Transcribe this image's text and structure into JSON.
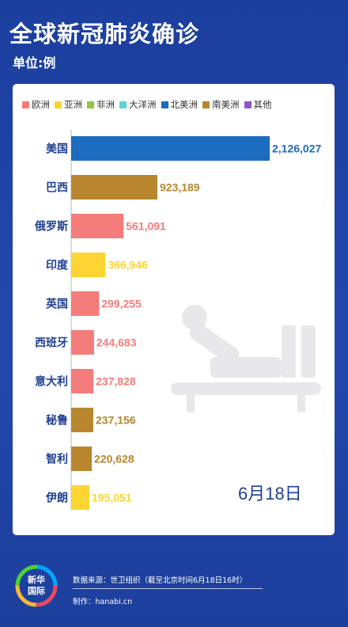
{
  "header": {
    "title": "全球新冠肺炎确诊",
    "unit": "单位:例"
  },
  "legend": [
    {
      "label": "欧洲",
      "color": "#f47c7a"
    },
    {
      "label": "亚洲",
      "color": "#fcd532"
    },
    {
      "label": "非洲",
      "color": "#8dc63f"
    },
    {
      "label": "大洋洲",
      "color": "#5fd4d6"
    },
    {
      "label": "北美洲",
      "color": "#1c6cbf"
    },
    {
      "label": "南美洲",
      "color": "#b8862e"
    },
    {
      "label": "其他",
      "color": "#8a56c7"
    }
  ],
  "date": "6月18日",
  "chart_data": {
    "type": "bar",
    "orientation": "horizontal",
    "categories": [
      "美国",
      "巴西",
      "俄罗斯",
      "印度",
      "英国",
      "西班牙",
      "意大利",
      "秘鲁",
      "智利",
      "伊朗"
    ],
    "values": [
      2126027,
      923189,
      561091,
      366946,
      299255,
      244683,
      237828,
      237156,
      220628,
      195051
    ],
    "labels": [
      "2,126,027",
      "923,189",
      "561,091",
      "366,946",
      "299,255",
      "244,683",
      "237,828",
      "237,156",
      "220,628",
      "195,051"
    ],
    "continents": [
      "北美洲",
      "南美洲",
      "欧洲",
      "亚洲",
      "欧洲",
      "欧洲",
      "欧洲",
      "南美洲",
      "南美洲",
      "亚洲"
    ],
    "xlim": [
      0,
      2126027
    ]
  },
  "colors": {
    "北美洲": "#1c6cbf",
    "南美洲": "#b8862e",
    "欧洲": "#f47c7a",
    "亚洲": "#fcd532",
    "category_text": "#1e3f94",
    "date_text": "#1e3f94"
  },
  "footer": {
    "logo_line1": "新华",
    "logo_line2": "国际",
    "source": "数据来源：世卫组织（截至北京时间6月18日16时）",
    "maker": "制作：hanabi.cn"
  }
}
